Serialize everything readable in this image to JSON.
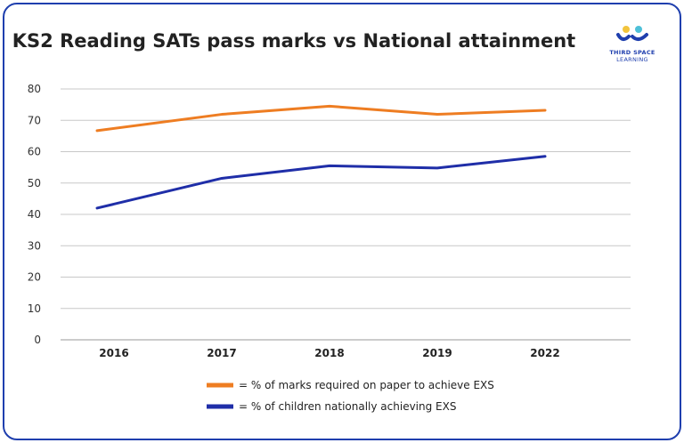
{
  "chart_data": {
    "type": "line",
    "title": "KS2 Reading SATs pass marks vs National attainment",
    "categories": [
      "2016",
      "2017",
      "2018",
      "2019",
      "2022"
    ],
    "ylim": [
      0,
      80
    ],
    "yticks": [
      0,
      10,
      20,
      30,
      40,
      50,
      60,
      70,
      80
    ],
    "grid": true,
    "legend_position": "bottom-center",
    "series": [
      {
        "name": "= % of marks required on paper to achieve EXS",
        "color": "#ee7d22",
        "values": [
          66.7,
          71.9,
          74.5,
          71.9,
          73.2
        ]
      },
      {
        "name": "= % of children nationally achieving EXS",
        "color": "#1f2ea8",
        "values": [
          42,
          51.5,
          55.5,
          54.8,
          58.5
        ]
      }
    ]
  },
  "logo": {
    "line1": "THIRD SPACE",
    "line2": "LEARNING",
    "colors": [
      "#1f3fae",
      "#f2c43d",
      "#4ec0d8"
    ]
  }
}
